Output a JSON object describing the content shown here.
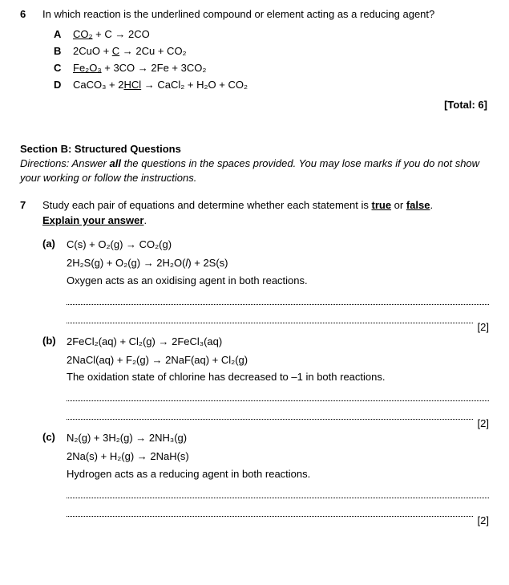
{
  "q6": {
    "number": "6",
    "text": "In which reaction is the underlined compound or element acting as a reducing agent?",
    "options": {
      "A": {
        "letter": "A",
        "pre_ul": "",
        "ul": "CO₂",
        "post_ul": " + C → 2CO"
      },
      "B": {
        "letter": "B",
        "pre_ul": "2CuO + ",
        "ul": "C",
        "post_ul": " → 2Cu + CO₂"
      },
      "C": {
        "letter": "C",
        "pre_ul": "",
        "ul": "Fe₂O₃",
        "post_ul": " + 3CO → 2Fe + 3CO₂"
      },
      "D": {
        "letter": "D",
        "pre_ul": "CaCO₃ + 2",
        "ul": "HCl",
        "post_ul": " → CaCl₂ + H₂O + CO₂"
      }
    },
    "total": "[Total: 6]"
  },
  "sectionB": {
    "header": "Section B: Structured Questions",
    "directions_prefix": "Directions: Answer ",
    "directions_bold": "all",
    "directions_suffix": " the questions in the spaces provided. You may lose marks if you do not show your working or follow the instructions."
  },
  "q7": {
    "number": "7",
    "stem_pre": "Study each pair of equations and determine whether each statement is ",
    "stem_true": "true",
    "stem_mid": " or ",
    "stem_false": "false",
    "stem_post": ".",
    "explain": "Explain your answer",
    "explain_post": ".",
    "parts": {
      "a": {
        "label": "(a)",
        "eq1": "C(s) + O₂(g) → CO₂(g)",
        "eq2": "2H₂S(g) + O₂(g) → 2H2O(l) + 2S(s)",
        "stmt": "Oxygen acts as an oxidising agent in both reactions.",
        "marks": "[2]"
      },
      "b": {
        "label": "(b)",
        "eq1": "2FeCl₂(aq) + Cl₂(g) → 2FeCl₃(aq)",
        "eq2": "2NaCl(aq) + F₂(g) → 2NaF(aq) + Cl₂(g)",
        "stmt": "The oxidation state of chlorine has decreased to –1 in both reactions.",
        "marks": "[2]"
      },
      "c": {
        "label": "(c)",
        "eq1": "N₂(g) + 3H₂(g) → 2NH₃(g)",
        "eq2": "2Na(s) + H₂(g) → 2NaH(s)",
        "stmt": "Hydrogen acts as a reducing agent in both reactions.",
        "marks": "[2]"
      }
    }
  }
}
